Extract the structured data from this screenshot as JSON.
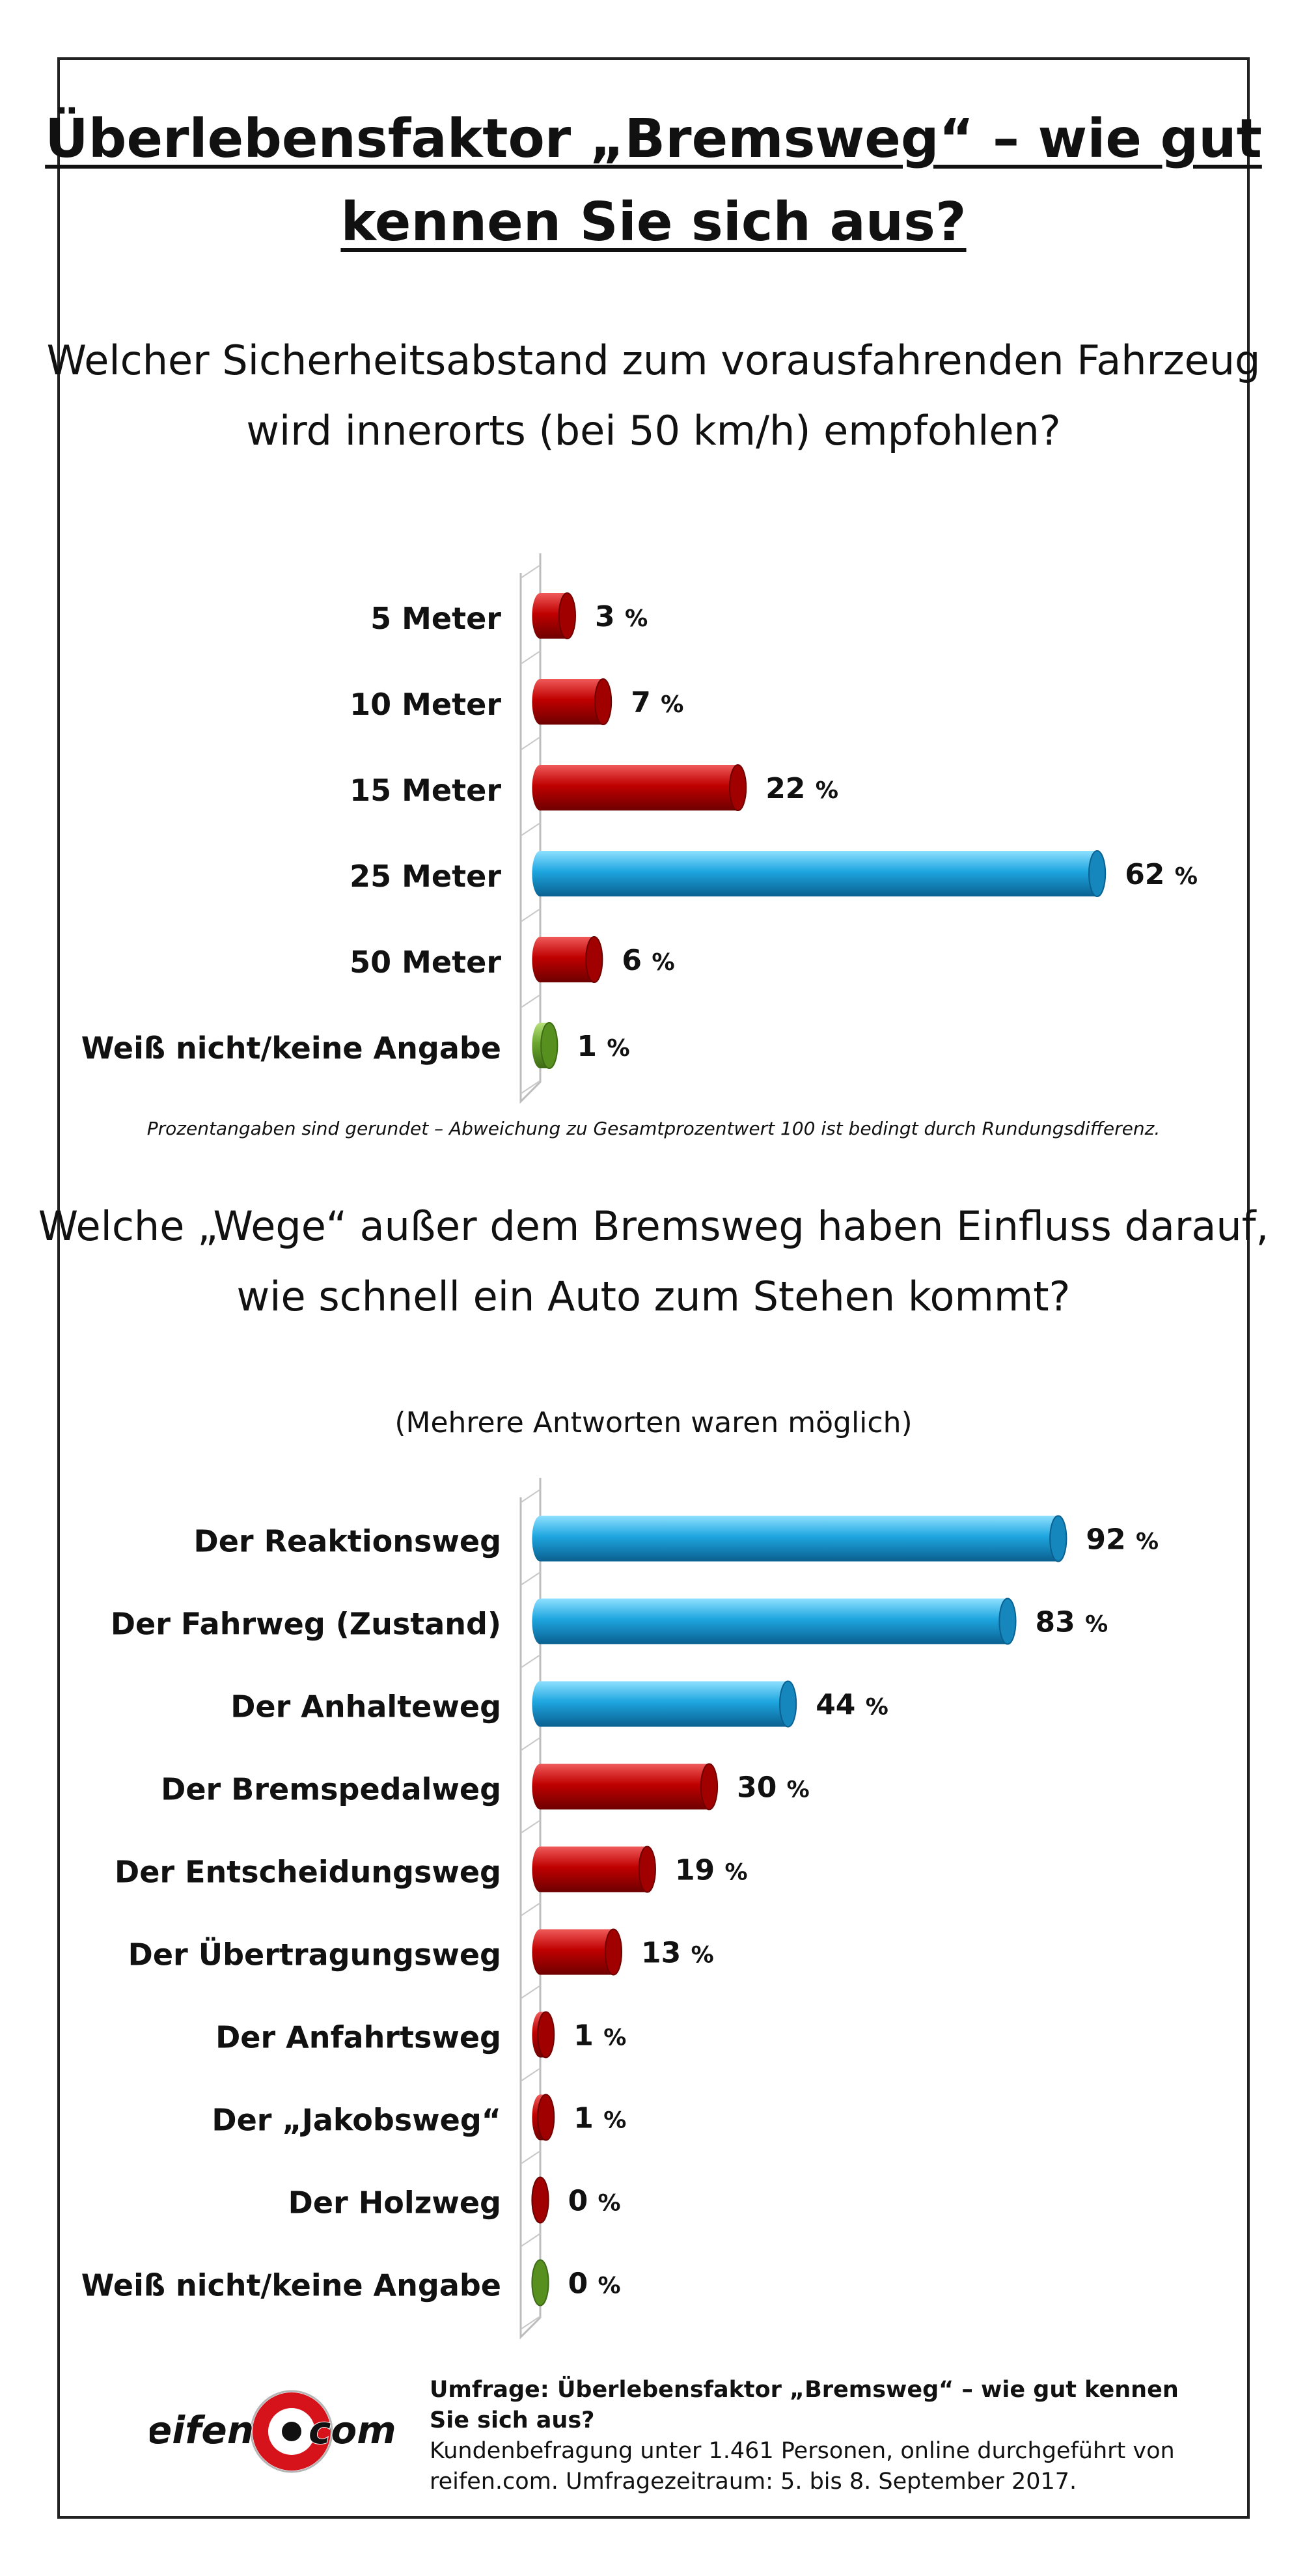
{
  "title": "Überlebensfaktor „Bremsweg“ – wie gut kennen Sie sich aus?",
  "question1": "Welcher Sicherheitsabstand zum vorausfahrenden Fahrzeug wird innerorts (bei 50 km/h) empfohlen?",
  "note": "Prozentangaben sind gerundet – Abweichung zu Gesamtprozentwert 100 ist bedingt durch Rundungsdifferenz.",
  "question2": "Welche „Wege“ außer dem Bremsweg haben Einfluss darauf, wie schnell ein Auto zum Stehen kommt?",
  "subnote": "(Mehrere Antworten waren möglich)",
  "colors": {
    "red": "#c00000",
    "blue": "#1ea6e0",
    "green": "#6aa62e"
  },
  "chart_data": [
    {
      "type": "bar",
      "orientation": "horizontal",
      "categories": [
        "5 Meter",
        "10 Meter",
        "15 Meter",
        "25 Meter",
        "50 Meter",
        "Weiß nicht/keine Angabe"
      ],
      "values": [
        3,
        7,
        22,
        62,
        6,
        1
      ],
      "bar_colors": [
        "red",
        "red",
        "red",
        "blue",
        "red",
        "green"
      ],
      "value_suffix": "%"
    },
    {
      "type": "bar",
      "orientation": "horizontal",
      "categories": [
        "Der Reaktionsweg",
        "Der Fahrweg (Zustand)",
        "Der Anhalteweg",
        "Der Bremspedalweg",
        "Der Entscheidungsweg",
        "Der Übertragungsweg",
        "Der Anfahrtsweg",
        "Der „Jakobsweg“",
        "Der Holzweg",
        "Weiß nicht/keine Angabe"
      ],
      "values": [
        92,
        83,
        44,
        30,
        19,
        13,
        1,
        1,
        0,
        0
      ],
      "bar_colors": [
        "blue",
        "blue",
        "blue",
        "red",
        "red",
        "red",
        "red",
        "red",
        "red",
        "green"
      ],
      "value_suffix": "%"
    }
  ],
  "footer": {
    "title": "Umfrage: Überlebensfaktor „Bremsweg“ – wie gut kennen Sie sich aus?",
    "line1": "Kundenbefragung unter 1.461 Personen, online durchgeführt von",
    "line2": "reifen.com. Umfragezeitraum: 5. bis 8. September 2017."
  },
  "logo": {
    "part1": "reifen",
    "part2": "com"
  }
}
